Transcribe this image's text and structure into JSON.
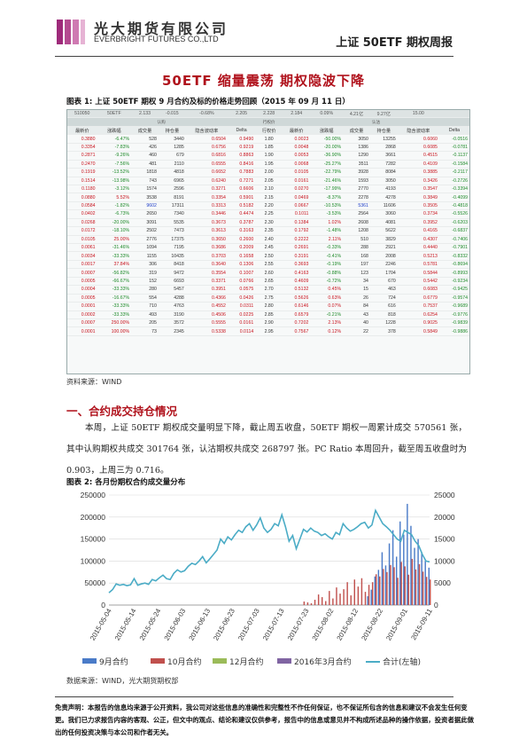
{
  "header": {
    "company_cn": "光大期货有限公司",
    "company_en": "EVERBRIGHT FUTURES CO.,LTD",
    "report_title": "上证 50ETF 期权周报"
  },
  "title": "50ETF 缩量震荡   期权隐波下降",
  "fig1": {
    "caption": "图表 1:  上证 50ETF 期权 9 月合约及标的价格走势回顾（2015 年 09 月 11 日）",
    "underlying": [
      "510050",
      "50ETF",
      "2.133",
      "-0.015",
      "-0.68%",
      "2.205",
      "2.228",
      "2.184",
      "0.09%",
      "4.21亿",
      "9.27亿",
      "15.00"
    ],
    "group_left": "认购",
    "group_mid": "行权价",
    "group_right": "认沽",
    "cols": [
      "最新价",
      "涨跌幅",
      "成交量",
      "持仓量",
      "隐含波动率",
      "Delta",
      "行权价",
      "最新价",
      "涨跌幅",
      "成交量",
      "持仓量",
      "隐含波动率",
      "Delta"
    ],
    "rows": [
      [
        "0.3880",
        "-6.47%",
        "528",
        "3440",
        "0.6504",
        "0.9490",
        "1.80",
        "0.0023",
        "-50.00%",
        "3050",
        "13255",
        "0.6060",
        "-0.0516"
      ],
      [
        "0.3354",
        "-7.83%",
        "426",
        "1285",
        "0.6756",
        "0.9219",
        "1.85",
        "0.0048",
        "-20.00%",
        "1386",
        "2868",
        "0.6085",
        "-0.0781"
      ],
      [
        "0.2871",
        "-9.26%",
        "460",
        "679",
        "0.6816",
        "0.8863",
        "1.90",
        "0.0053",
        "-36.90%",
        "1290",
        "3661",
        "0.4515",
        "-0.1137"
      ],
      [
        "0.2470",
        "-7.56%",
        "481",
        "2110",
        "0.6555",
        "0.8416",
        "1.95",
        "0.0068",
        "-25.27%",
        "3511",
        "7282",
        "0.4109",
        "-0.1584"
      ],
      [
        "0.1919",
        "-13.52%",
        "1818",
        "4818",
        "0.6652",
        "0.7883",
        "2.00",
        "0.0105",
        "-22.79%",
        "3928",
        "8084",
        "0.3885",
        "-0.2117"
      ],
      [
        "0.1514",
        "-13.98%",
        "743",
        "6965",
        "0.6240",
        "0.7271",
        "2.05",
        "0.0161",
        "-21.46%",
        "1593",
        "3050",
        "0.3426",
        "-0.2726"
      ],
      [
        "0.1180",
        "-3.12%",
        "1574",
        "2596",
        "0.3271",
        "0.6606",
        "2.10",
        "0.0270",
        "-17.99%",
        "2770",
        "4193",
        "0.3547",
        "-0.3394"
      ],
      [
        "0.0880",
        "5.52%",
        "3538",
        "8191",
        "0.3354",
        "0.5901",
        "2.15",
        "0.0469",
        "-8.37%",
        "2278",
        "4278",
        "0.3849",
        "-0.4099"
      ],
      [
        "0.0584",
        "-1.82%",
        "9602",
        "17311",
        "0.3313",
        "0.5182",
        "2.20",
        "0.0667",
        "-10.53%",
        "5361",
        "11606",
        "0.3505",
        "-0.4818"
      ],
      [
        "0.0402",
        "-6.73%",
        "2650",
        "7340",
        "0.3446",
        "0.4474",
        "2.25",
        "0.1011",
        "-3.53%",
        "2564",
        "3060",
        "0.3734",
        "-0.5526"
      ],
      [
        "0.0268",
        "-20.00%",
        "3091",
        "5535",
        "0.3673",
        "0.3787",
        "2.30",
        "0.1384",
        "1.02%",
        "2608",
        "4081",
        "0.3952",
        "-0.6203"
      ],
      [
        "0.0172",
        "-18.10%",
        "2502",
        "7473",
        "0.3613",
        "0.3163",
        "2.35",
        "0.1792",
        "-1.48%",
        "1208",
        "5622",
        "0.4165",
        "-0.6837"
      ],
      [
        "0.0105",
        "25.00%",
        "2776",
        "17375",
        "0.3650",
        "0.2600",
        "2.40",
        "0.2222",
        "2.11%",
        "510",
        "3829",
        "0.4307",
        "-0.7406"
      ],
      [
        "0.0061",
        "-31.46%",
        "1094",
        "7195",
        "0.3686",
        "0.2009",
        "2.45",
        "0.2691",
        "-0.33%",
        "288",
        "2921",
        "0.4440",
        "-0.7901"
      ],
      [
        "0.0034",
        "-33.33%",
        "1155",
        "10435",
        "0.3703",
        "0.1658",
        "2.50",
        "0.3191",
        "-0.41%",
        "168",
        "2008",
        "0.5213",
        "-0.8332"
      ],
      [
        "0.0017",
        "37.84%",
        "306",
        "8418",
        "0.3640",
        "0.1306",
        "2.55",
        "0.3693",
        "-0.19%",
        "197",
        "2246",
        "0.5781",
        "-0.8694"
      ],
      [
        "0.0007",
        "-56.82%",
        "319",
        "9472",
        "0.3554",
        "0.1007",
        "2.60",
        "0.4163",
        "-0.88%",
        "123",
        "1704",
        "0.5844",
        "-0.8993"
      ],
      [
        "0.0005",
        "-66.67%",
        "152",
        "6693",
        "0.3371",
        "0.0766",
        "2.65",
        "0.4609",
        "-0.72%",
        "34",
        "670",
        "0.5442",
        "-0.9234"
      ],
      [
        "0.0004",
        "-33.33%",
        "280",
        "5457",
        "0.3951",
        "0.0575",
        "2.70",
        "0.5132",
        "0.45%",
        "15",
        "463",
        "0.6083",
        "-0.9425"
      ],
      [
        "0.0005",
        "-16.67%",
        "554",
        "4288",
        "0.4366",
        "0.0426",
        "2.75",
        "0.5626",
        "0.63%",
        "26",
        "724",
        "0.6779",
        "-0.9574"
      ],
      [
        "0.0001",
        "-33.33%",
        "710",
        "4763",
        "0.4552",
        "0.0311",
        "2.80",
        "0.6146",
        "0.07%",
        "84",
        "616",
        "0.7537",
        "-0.9689"
      ],
      [
        "0.0002",
        "-33.33%",
        "493",
        "3190",
        "0.4506",
        "0.0225",
        "2.85",
        "0.6579",
        "-0.21%",
        "43",
        "818",
        "0.6254",
        "-0.9776"
      ],
      [
        "0.0007",
        "250.00%",
        "205",
        "3572",
        "0.5555",
        "0.0161",
        "2.90",
        "0.7202",
        "2.13%",
        "40",
        "1228",
        "0.9025",
        "-0.9839"
      ],
      [
        "0.0001",
        "100.00%",
        "73",
        "2345",
        "0.5338",
        "0.0114",
        "2.95",
        "0.7567",
        "0.12%",
        "22",
        "378",
        "0.5849",
        "-0.9886"
      ]
    ],
    "source": "资料来源：WIND"
  },
  "section1": "一、合约成交持仓情况",
  "para": "本周，上证 50ETF 期权成交量明显下降，截止周五收盘，50ETF 期权一周累计成交 570561 张，其中认购期权共成交 301764 张，认沽期权共成交 268797 张。PC Ratio 本周回升，截至周五收盘时为 0.903，上周三为 0.716。",
  "fig2": {
    "caption": "图表 2:  各月份期权合约成交量分布",
    "source": "数据来源：WIND，光大期货期权部"
  },
  "chart_data": {
    "type": "bar",
    "ylim_left": [
      0,
      250000
    ],
    "ylim_right": [
      0,
      25000
    ],
    "yticks": [
      0,
      50000,
      100000,
      150000,
      200000,
      250000
    ],
    "yticks_right": [
      0,
      5000,
      10000,
      15000,
      20000,
      25000
    ],
    "x_ticks": [
      "2015-05-04",
      "2015-05-14",
      "2015-05-24",
      "2015-06-03",
      "2015-06-13",
      "2015-06-23",
      "2015-07-03",
      "2015-07-13",
      "2015-07-23",
      "2015-08-02",
      "2015-08-12",
      "2015-08-22",
      "2015-09-01",
      "2015-09-11"
    ],
    "legend": [
      "9月合约",
      "10月合约",
      "12月合约",
      "2016年3月合约",
      "合计(左轴)"
    ],
    "colors": [
      "#4a7bc8",
      "#c0504d",
      "#9bbb59",
      "#8064a2",
      "#4bacc6"
    ],
    "legend_position": "bottom",
    "series": [
      {
        "name": "合计(左轴)",
        "axis": "left",
        "type": "line",
        "values": [
          28000,
          35000,
          48000,
          45000,
          47000,
          44000,
          46000,
          60000,
          45000,
          48000,
          50000,
          47000,
          58000,
          55000,
          62000,
          68000,
          60000,
          58000,
          72000,
          80000,
          75000,
          78000,
          88000,
          95000,
          92000,
          100000,
          110000,
          96000,
          105000,
          115000,
          125000,
          150000,
          140000,
          155000,
          148000,
          160000,
          170000,
          165000,
          178000,
          185000,
          170000,
          182000,
          198000,
          175000,
          165000,
          172000,
          185000,
          180000,
          205000,
          178000,
          145000,
          158000,
          128000,
          150000,
          172000,
          166000,
          175000,
          168000,
          165000,
          158000,
          162000,
          155000,
          150000,
          165000,
          160000,
          185000,
          175000,
          168000,
          172000,
          178000,
          185000,
          188000,
          175000,
          182000,
          215000,
          200000,
          185000,
          178000,
          170000,
          160000,
          150000,
          145000,
          170000,
          165000,
          160000,
          145000,
          135000,
          115000,
          100000,
          98000
        ]
      },
      {
        "name": "9月合约",
        "axis": "right",
        "type": "bar",
        "values": [
          0,
          0,
          0,
          0,
          0,
          0,
          0,
          0,
          0,
          0,
          0,
          0,
          0,
          0,
          0,
          0,
          0,
          0,
          0,
          0,
          0,
          0,
          0,
          0,
          0,
          0,
          0,
          0,
          0,
          0,
          0,
          0,
          0,
          0,
          0,
          0,
          0,
          0,
          0,
          0,
          0,
          0,
          0,
          0,
          0,
          0,
          0,
          0,
          0,
          0,
          0,
          0,
          0,
          0,
          0,
          0,
          0,
          0,
          0,
          0,
          0,
          0,
          0,
          0,
          0,
          0,
          0,
          0,
          0,
          0,
          0,
          0,
          2000,
          3500,
          6500,
          8000,
          12000,
          9000,
          14000,
          17000,
          11000,
          19000,
          16000,
          23000,
          18000,
          13000,
          15000,
          12000,
          10000,
          8500
        ]
      },
      {
        "name": "10月合约",
        "axis": "right",
        "type": "bar",
        "values": [
          0,
          0,
          0,
          0,
          0,
          0,
          0,
          0,
          0,
          0,
          0,
          0,
          0,
          0,
          0,
          0,
          0,
          0,
          0,
          0,
          0,
          0,
          0,
          0,
          0,
          0,
          0,
          0,
          0,
          0,
          0,
          0,
          0,
          0,
          0,
          0,
          0,
          0,
          0,
          0,
          0,
          0,
          0,
          0,
          0,
          0,
          0,
          0,
          0,
          0,
          0,
          0,
          0,
          0,
          800,
          600,
          400,
          1200,
          2400,
          1800,
          900,
          3200,
          1500,
          4000,
          2600,
          3600,
          5200,
          2200,
          5800,
          4200,
          6100,
          3000,
          4600,
          5200,
          7000,
          6500,
          8200,
          7500,
          9100,
          8600,
          6200,
          9800,
          8800,
          6900,
          10500,
          8100,
          9300,
          7600,
          6400,
          5800
        ]
      },
      {
        "name": "12月合约",
        "axis": "right",
        "type": "bar",
        "values": [
          0,
          0,
          0,
          0,
          0,
          0,
          0,
          0,
          0,
          0,
          0,
          0,
          0,
          0,
          0,
          0,
          0,
          0,
          0,
          0,
          0,
          0,
          0,
          0,
          0,
          0,
          0,
          0,
          0,
          0,
          0,
          0,
          0,
          0,
          0,
          0,
          0,
          0,
          0,
          0,
          0,
          0,
          0,
          0,
          0,
          0,
          0,
          0,
          0,
          0,
          0,
          0,
          0,
          0,
          0,
          0,
          0,
          0,
          0,
          0,
          0,
          0,
          0,
          0,
          0,
          0,
          0,
          0,
          0,
          0,
          0,
          0,
          0,
          0,
          0,
          0,
          0,
          0,
          0,
          0,
          0,
          0,
          0,
          0,
          0,
          0,
          0,
          0,
          0,
          0
        ]
      },
      {
        "name": "2016年3月合约",
        "axis": "right",
        "type": "bar",
        "values": [
          0,
          0,
          0,
          0,
          0,
          0,
          0,
          0,
          0,
          0,
          0,
          0,
          0,
          0,
          0,
          0,
          0,
          0,
          0,
          0,
          0,
          0,
          0,
          0,
          0,
          0,
          0,
          0,
          0,
          0,
          0,
          0,
          0,
          0,
          0,
          0,
          0,
          0,
          0,
          0,
          0,
          0,
          0,
          0,
          0,
          0,
          0,
          0,
          0,
          0,
          0,
          0,
          0,
          0,
          0,
          0,
          0,
          0,
          0,
          0,
          0,
          0,
          0,
          0,
          0,
          0,
          0,
          0,
          0,
          0,
          0,
          0,
          0,
          0,
          0,
          0,
          0,
          0,
          0,
          0,
          0,
          0,
          0,
          0,
          0,
          0,
          0,
          0,
          0,
          0
        ]
      }
    ]
  },
  "disclaimer": "免责声明：本报告的信息均来源于公开资料，我公司对这些信息的准确性和完整性不作任何保证，也不保证所包含的信息和建议不会发生任何变更。我们已力求报告内容的客观、公正，但文中的观点、结论和建议仅供参考，报告中的信息或意见并不构成所述品种的操作依据，投资者据此做出的任何投资决策与本公司和作者无关。"
}
